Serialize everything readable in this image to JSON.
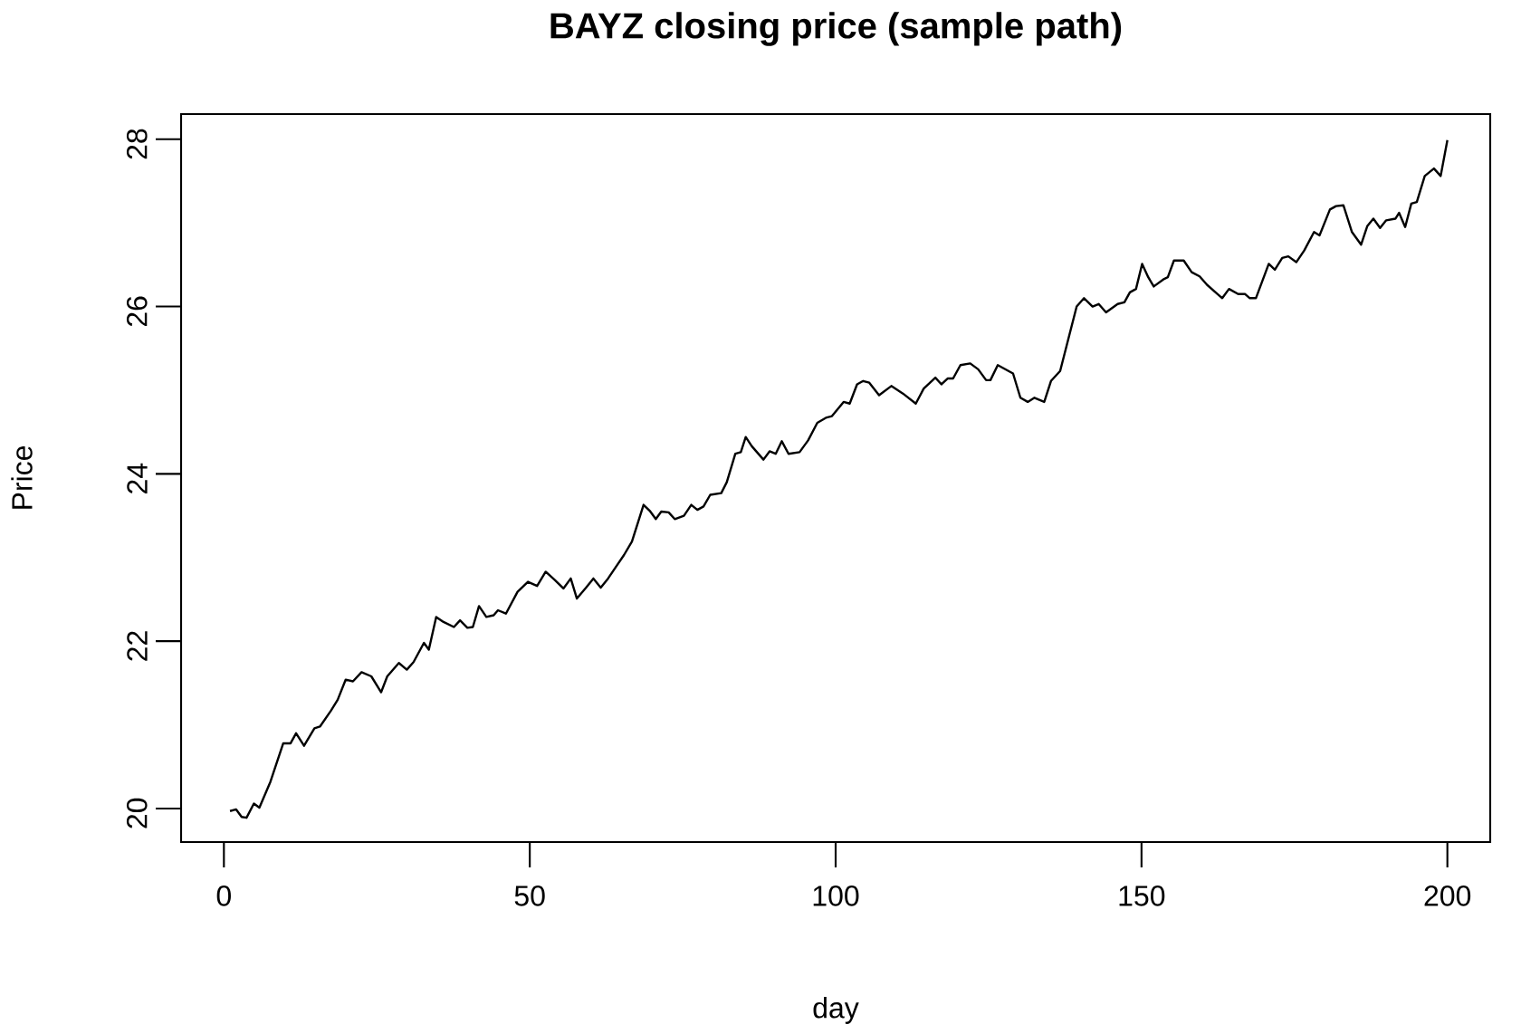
{
  "chart_data": {
    "type": "line",
    "title": "BAYZ closing price (sample path)",
    "xlabel": "day",
    "ylabel": "Price",
    "color": "#000000",
    "x": [
      1,
      2.0,
      2.9,
      3.7,
      4.9,
      5.8,
      7.6,
      9.7,
      10.9,
      11.8,
      13.1,
      14.8,
      15.7,
      17.5,
      18.6,
      19.9,
      21.1,
      22.5,
      24.1,
      25.7,
      26.7,
      28.6,
      29.9,
      31.0,
      32.7,
      33.5,
      34.7,
      35.9,
      37.6,
      38.6,
      39.8,
      40.7,
      41.7,
      42.9,
      44.1,
      44.8,
      46.1,
      48.0,
      49.7,
      51.2,
      52.6,
      54.1,
      55.5,
      56.7,
      57.7,
      59.2,
      60.4,
      61.6,
      62.8,
      64.0,
      65.4,
      66.7,
      68.6,
      69.6,
      70.6,
      71.5,
      72.7,
      73.7,
      75.2,
      76.4,
      77.4,
      78.4,
      79.5,
      81.3,
      82.2,
      83.6,
      84.5,
      85.3,
      86.3,
      88.2,
      89.2,
      90.2,
      91.2,
      92.3,
      94.1,
      95.5,
      97.0,
      98.4,
      99.4,
      101.3,
      102.3,
      103.5,
      104.5,
      105.5,
      107.1,
      109.1,
      111.0,
      113.1,
      114.4,
      116.3,
      117.3,
      118.3,
      119.2,
      120.4,
      122.0,
      123.3,
      124.6,
      125.3,
      126.5,
      129.0,
      130.2,
      131.4,
      132.5,
      134.1,
      135.2,
      136.7,
      138.1,
      139.4,
      140.6,
      142.0,
      143.0,
      144.2,
      146.1,
      147.2,
      148.1,
      149.1,
      150.1,
      151.1,
      152.0,
      153.7,
      154.3,
      155.3,
      156.9,
      158.2,
      159.5,
      160.7,
      162.1,
      163.2,
      164.3,
      165.8,
      166.9,
      167.7,
      168.7,
      170.8,
      171.8,
      173.0,
      174.0,
      175.3,
      176.6,
      178.2,
      179.1,
      180.8,
      181.8,
      183.0,
      184.4,
      185.9,
      186.9,
      187.9,
      189.0,
      190.0,
      191.5,
      192.1,
      193.1,
      194.1,
      195.0,
      196.3,
      197.8,
      198.9,
      200
    ],
    "values": [
      19.97,
      19.99,
      19.9,
      19.89,
      20.06,
      20.01,
      20.32,
      20.78,
      20.78,
      20.9,
      20.75,
      20.96,
      20.98,
      21.17,
      21.3,
      21.54,
      21.52,
      21.63,
      21.58,
      21.39,
      21.58,
      21.74,
      21.66,
      21.75,
      21.98,
      21.9,
      22.29,
      22.23,
      22.17,
      22.25,
      22.16,
      22.17,
      22.42,
      22.29,
      22.31,
      22.37,
      22.33,
      22.59,
      22.71,
      22.66,
      22.83,
      22.73,
      22.63,
      22.75,
      22.51,
      22.64,
      22.75,
      22.64,
      22.75,
      22.88,
      23.03,
      23.19,
      23.63,
      23.56,
      23.46,
      23.55,
      23.54,
      23.46,
      23.5,
      23.63,
      23.57,
      23.61,
      23.75,
      23.77,
      23.9,
      24.24,
      24.26,
      24.44,
      24.33,
      24.17,
      24.27,
      24.24,
      24.39,
      24.24,
      24.26,
      24.4,
      24.61,
      24.67,
      24.69,
      24.86,
      24.84,
      25.07,
      25.11,
      25.09,
      24.94,
      25.05,
      24.96,
      24.84,
      25.02,
      25.15,
      25.07,
      25.14,
      25.14,
      25.3,
      25.32,
      25.25,
      25.12,
      25.12,
      25.3,
      25.2,
      24.91,
      24.86,
      24.91,
      24.86,
      25.11,
      25.23,
      25.63,
      26.0,
      26.1,
      26.0,
      26.03,
      25.93,
      26.03,
      26.05,
      26.17,
      26.21,
      26.51,
      26.35,
      26.24,
      26.33,
      26.35,
      26.55,
      26.55,
      26.41,
      26.36,
      26.26,
      26.17,
      26.1,
      26.21,
      26.15,
      26.15,
      26.1,
      26.1,
      26.51,
      26.44,
      26.58,
      26.6,
      26.53,
      26.67,
      26.89,
      26.85,
      27.16,
      27.2,
      27.21,
      26.89,
      26.74,
      26.96,
      27.05,
      26.94,
      27.03,
      27.05,
      27.12,
      26.95,
      27.23,
      27.25,
      27.56,
      27.65,
      27.56,
      27.99
    ],
    "xlim": [
      -7,
      207
    ],
    "ylim": [
      19.6,
      28.3
    ],
    "xticks": [
      0,
      50,
      100,
      150,
      200
    ],
    "yticks": [
      20,
      22,
      24,
      26,
      28
    ]
  }
}
